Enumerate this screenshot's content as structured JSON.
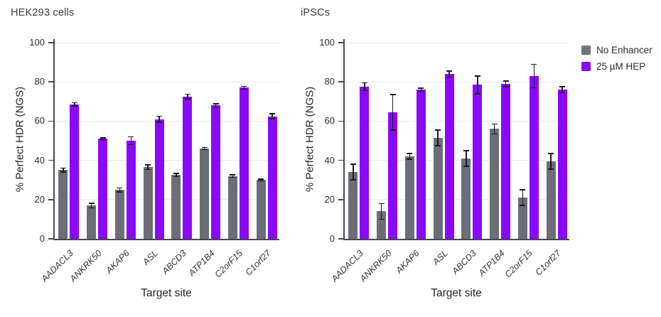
{
  "page": {
    "background": "#ffffff"
  },
  "legend": {
    "items": [
      {
        "label": "No Enhancer",
        "color": "#6b6e77",
        "textured": true
      },
      {
        "label": "25 µM HEP",
        "color": "#8a09f9",
        "textured": false
      }
    ]
  },
  "chart_data": [
    {
      "type": "bar",
      "title": "HEK293 cells",
      "xlabel": "Target site",
      "ylabel": "% Perfect HDR (NGS)",
      "ylim": [
        0,
        100
      ],
      "yticks": [
        0,
        20,
        40,
        60,
        80,
        100
      ],
      "grid": true,
      "legend_position": "outside-top-right",
      "categories": [
        "AADACL3",
        "ANKRK50",
        "AKAP6",
        "ASL",
        "ABCD3",
        "ATP1B4",
        "C2orF15",
        "C1orf27"
      ],
      "series": [
        {
          "name": "No Enhancer",
          "color": "#6b6e77",
          "textured": true,
          "values": [
            35,
            17,
            25,
            36.5,
            32.5,
            46,
            32,
            30
          ],
          "errors": [
            1,
            1.2,
            1,
            1.2,
            0.8,
            0.6,
            0.6,
            0.5
          ]
        },
        {
          "name": "25 µM HEP",
          "color": "#8a09f9",
          "textured": false,
          "values": [
            68.5,
            51,
            50,
            61,
            72.5,
            68,
            77,
            62.5
          ],
          "errors": [
            0.8,
            0.5,
            2,
            1.5,
            1.2,
            0.8,
            0.7,
            1.3
          ]
        }
      ]
    },
    {
      "type": "bar",
      "title": "iPSCs",
      "xlabel": "Target site",
      "ylabel": "% Perfect HDR (NGS)",
      "ylim": [
        0,
        100
      ],
      "yticks": [
        0,
        20,
        40,
        60,
        80,
        100
      ],
      "grid": true,
      "legend_position": "outside-top-right",
      "categories": [
        "AADACL3",
        "ANKRK50",
        "AKAP6",
        "ASL",
        "ABCD3",
        "ATP1B4",
        "C2orF15",
        "C1orf27"
      ],
      "series": [
        {
          "name": "No Enhancer",
          "color": "#6b6e77",
          "textured": true,
          "values": [
            34,
            14,
            42,
            51.5,
            41,
            56,
            21,
            39.5
          ],
          "errors": [
            4,
            4,
            1.5,
            4,
            4,
            2.5,
            4,
            4
          ]
        },
        {
          "name": "25 µM HEP",
          "color": "#8a09f9",
          "textured": false,
          "values": [
            77.5,
            64.5,
            76,
            84,
            78.5,
            79,
            83,
            76
          ],
          "errors": [
            2,
            9,
            0.8,
            1.5,
            4.5,
            1.5,
            6,
            1.5
          ]
        }
      ]
    }
  ]
}
